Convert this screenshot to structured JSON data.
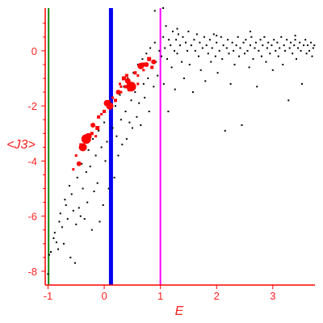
{
  "chart_data": {
    "type": "scatter",
    "title": "",
    "xlabel": "E",
    "ylabel": "<J3>",
    "xlim": [
      -1.05,
      3.75
    ],
    "ylim": [
      -8.5,
      1.55
    ],
    "xticks": [
      "-1",
      "0",
      "1",
      "2",
      "3"
    ],
    "yticks": [
      "-8",
      "-6",
      "-4",
      "-2",
      "0"
    ],
    "colors": {
      "axis": "#ff0000",
      "labels": "#ff2020",
      "black_points": "#000000",
      "red_points": "#ff0000",
      "line_green": "#118811",
      "line_blue": "#0000ee",
      "line_magenta": "#ff00ff"
    },
    "vertical_lines": [
      {
        "x": -0.99,
        "color": "#118811"
      },
      {
        "x": 0.12,
        "color": "#0000ee"
      },
      {
        "x": 1.0,
        "color": "#ff00ff"
      }
    ],
    "series": [
      {
        "color": "#000000",
        "points": [
          [
            -1.0,
            -8.1
          ],
          [
            -0.98,
            -7.4
          ],
          [
            -0.95,
            -7.3
          ],
          [
            -0.9,
            -6.8
          ],
          [
            -0.88,
            -6.6
          ],
          [
            -0.85,
            -6.95
          ],
          [
            -0.82,
            -7.2
          ],
          [
            -0.8,
            -6.2
          ],
          [
            -0.78,
            -5.9
          ],
          [
            -0.75,
            -6.4
          ],
          [
            -0.72,
            -7.0
          ],
          [
            -0.7,
            -5.4
          ],
          [
            -0.68,
            -5.6
          ],
          [
            -0.65,
            -6.1
          ],
          [
            -0.62,
            -4.9
          ],
          [
            -0.6,
            -7.5
          ],
          [
            -0.58,
            -5.2
          ],
          [
            -0.55,
            -5.8
          ],
          [
            -0.52,
            -7.7
          ],
          [
            -0.5,
            -6.3
          ],
          [
            -0.48,
            -4.6
          ],
          [
            -0.45,
            -5.7
          ],
          [
            -0.42,
            -6.0
          ],
          [
            -0.4,
            -4.1
          ],
          [
            -0.38,
            -5.0
          ],
          [
            -0.35,
            -6.1
          ],
          [
            -0.32,
            -4.4
          ],
          [
            -0.3,
            -5.5
          ],
          [
            -0.28,
            -3.6
          ],
          [
            -0.25,
            -4.2
          ],
          [
            -0.22,
            -6.5
          ],
          [
            -0.2,
            -3.2
          ],
          [
            -0.18,
            -5.1
          ],
          [
            -0.15,
            -3.8
          ],
          [
            -0.12,
            -4.8
          ],
          [
            -0.1,
            -2.9
          ],
          [
            -0.08,
            -6.2
          ],
          [
            -0.05,
            -3.5
          ],
          [
            -0.02,
            -5.6
          ],
          [
            0.0,
            -2.6
          ],
          [
            0.02,
            -4.0
          ],
          [
            0.05,
            -3.3
          ],
          [
            0.08,
            -5.0
          ],
          [
            0.15,
            -2.8
          ],
          [
            0.18,
            -4.6
          ],
          [
            0.2,
            -2.0
          ],
          [
            0.22,
            -3.1
          ],
          [
            0.25,
            -3.8
          ],
          [
            0.28,
            -1.6
          ],
          [
            0.3,
            -2.5
          ],
          [
            0.32,
            -3.4
          ],
          [
            0.35,
            -1.3
          ],
          [
            0.38,
            -2.2
          ],
          [
            0.4,
            -3.2
          ],
          [
            0.42,
            -1.0
          ],
          [
            0.45,
            -2.6
          ],
          [
            0.48,
            -1.8
          ],
          [
            0.5,
            -2.8
          ],
          [
            0.52,
            -0.8
          ],
          [
            0.55,
            -1.5
          ],
          [
            0.58,
            -2.4
          ],
          [
            0.6,
            -0.5
          ],
          [
            0.62,
            -1.9
          ],
          [
            0.65,
            -2.7
          ],
          [
            0.68,
            -0.3
          ],
          [
            0.7,
            -1.2
          ],
          [
            0.72,
            -1.7
          ],
          [
            0.75,
            -0.1
          ],
          [
            0.78,
            -1.0
          ],
          [
            0.8,
            -2.2
          ],
          [
            0.82,
            0.1
          ],
          [
            0.85,
            -0.6
          ],
          [
            0.88,
            -1.3
          ],
          [
            0.9,
            0.3
          ],
          [
            0.92,
            -0.4
          ],
          [
            0.95,
            -0.9
          ],
          [
            0.98,
            0.0
          ],
          [
            1.02,
            -0.2
          ],
          [
            1.05,
            0.5
          ],
          [
            1.06,
            -1.2
          ],
          [
            1.08,
            0.1
          ],
          [
            1.1,
            0.9
          ],
          [
            1.12,
            -0.3
          ],
          [
            1.14,
            -2.2
          ],
          [
            1.15,
            0.4
          ],
          [
            1.18,
            0.2
          ],
          [
            1.2,
            -0.6
          ],
          [
            1.22,
            0.7
          ],
          [
            1.25,
            0.0
          ],
          [
            1.26,
            -1.4
          ],
          [
            1.28,
            0.4
          ],
          [
            1.3,
            -0.1
          ],
          [
            1.32,
            0.6
          ],
          [
            1.35,
            0.2
          ],
          [
            1.38,
            -0.4
          ],
          [
            1.4,
            0.5
          ],
          [
            1.42,
            -1.0
          ],
          [
            1.45,
            0.3
          ],
          [
            1.48,
            0.0
          ],
          [
            1.5,
            0.7
          ],
          [
            1.52,
            -0.5
          ],
          [
            1.55,
            0.2
          ],
          [
            1.58,
            -1.5
          ],
          [
            1.6,
            0.4
          ],
          [
            1.62,
            0.0
          ],
          [
            1.65,
            0.6
          ],
          [
            1.68,
            -0.2
          ],
          [
            1.7,
            0.3
          ],
          [
            1.72,
            -0.7
          ],
          [
            1.75,
            0.1
          ],
          [
            1.78,
            0.5
          ],
          [
            1.8,
            -1.1
          ],
          [
            1.82,
            0.2
          ],
          [
            1.85,
            -0.1
          ],
          [
            1.88,
            0.4
          ],
          [
            1.9,
            -0.4
          ],
          [
            1.92,
            0.1
          ],
          [
            1.95,
            0.6
          ],
          [
            1.98,
            -0.2
          ],
          [
            2.0,
            0.3
          ],
          [
            2.02,
            -0.8
          ],
          [
            2.05,
            0.0
          ],
          [
            2.08,
            0.5
          ],
          [
            2.1,
            -0.3
          ],
          [
            2.12,
            0.2
          ],
          [
            2.15,
            -2.9
          ],
          [
            2.18,
            0.1
          ],
          [
            2.2,
            0.4
          ],
          [
            2.22,
            -0.1
          ],
          [
            2.25,
            -1.2
          ],
          [
            2.28,
            0.3
          ],
          [
            2.3,
            0.0
          ],
          [
            2.32,
            -0.5
          ],
          [
            2.35,
            0.2
          ],
          [
            2.38,
            0.5
          ],
          [
            2.4,
            -0.2
          ],
          [
            2.42,
            0.1
          ],
          [
            2.45,
            -2.7
          ],
          [
            2.48,
            0.3
          ],
          [
            2.5,
            -0.1
          ],
          [
            2.52,
            0.4
          ],
          [
            2.55,
            0.0
          ],
          [
            2.58,
            -0.6
          ],
          [
            2.6,
            0.2
          ],
          [
            2.62,
            0.5
          ],
          [
            2.65,
            -0.3
          ],
          [
            2.68,
            0.1
          ],
          [
            2.7,
            0.3
          ],
          [
            2.72,
            -1.3
          ],
          [
            2.75,
            0.0
          ],
          [
            2.78,
            0.4
          ],
          [
            2.8,
            -0.2
          ],
          [
            2.82,
            0.2
          ],
          [
            2.85,
            0.5
          ],
          [
            2.88,
            -0.4
          ],
          [
            2.9,
            0.1
          ],
          [
            2.92,
            0.3
          ],
          [
            2.95,
            -0.1
          ],
          [
            2.98,
            0.2
          ],
          [
            3.0,
            -0.7
          ],
          [
            3.02,
            0.4
          ],
          [
            3.05,
            0.0
          ],
          [
            3.08,
            0.3
          ],
          [
            3.1,
            -0.2
          ],
          [
            3.12,
            0.1
          ],
          [
            3.15,
            0.5
          ],
          [
            3.18,
            -0.5
          ],
          [
            3.2,
            0.2
          ],
          [
            3.22,
            0.0
          ],
          [
            3.25,
            0.4
          ],
          [
            3.28,
            -1.8
          ],
          [
            3.3,
            0.1
          ],
          [
            3.32,
            0.3
          ],
          [
            3.35,
            -0.1
          ],
          [
            3.38,
            0.2
          ],
          [
            3.4,
            0.4
          ],
          [
            3.42,
            -0.3
          ],
          [
            3.45,
            0.1
          ],
          [
            3.48,
            0.3
          ],
          [
            3.5,
            0.0
          ],
          [
            3.52,
            -1.2
          ],
          [
            3.55,
            0.2
          ],
          [
            3.58,
            0.4
          ],
          [
            3.6,
            -0.1
          ],
          [
            3.62,
            0.2
          ],
          [
            3.65,
            0.0
          ],
          [
            3.68,
            0.3
          ],
          [
            3.7,
            -0.2
          ],
          [
            3.72,
            0.1
          ],
          [
            3.74,
            0.2
          ],
          [
            0.9,
            1.45
          ],
          [
            1.05,
            1.55
          ],
          [
            1.3,
            0.8
          ],
          [
            2.0,
            0.55
          ],
          [
            2.6,
            0.7
          ],
          [
            3.4,
            0.55
          ]
        ]
      },
      {
        "color": "#ff0000",
        "points": [
          [
            -0.55,
            -4.3
          ],
          [
            -0.5,
            -3.8
          ],
          [
            -0.45,
            -4.1
          ],
          [
            -0.42,
            -3.4
          ],
          [
            -0.38,
            -3.5
          ],
          [
            -0.32,
            -3.2
          ],
          [
            -0.28,
            -3.1
          ],
          [
            -0.22,
            -3.0
          ],
          [
            -0.2,
            -2.7
          ],
          [
            -0.15,
            -3.1
          ],
          [
            -0.12,
            -2.8
          ],
          [
            -0.1,
            -2.4
          ],
          [
            -0.05,
            -2.3
          ],
          [
            0.0,
            -2.2
          ],
          [
            0.05,
            -1.9
          ],
          [
            0.08,
            -1.85
          ],
          [
            0.1,
            -2.0
          ],
          [
            0.15,
            -1.7
          ],
          [
            0.2,
            -1.8
          ],
          [
            0.25,
            -1.5
          ],
          [
            0.28,
            -1.2
          ],
          [
            0.3,
            -1.5
          ],
          [
            0.35,
            -1.0
          ],
          [
            0.38,
            -1.3
          ],
          [
            0.42,
            -1.1
          ],
          [
            0.45,
            -1.4
          ],
          [
            0.48,
            -1.3
          ],
          [
            0.5,
            -1.2
          ],
          [
            0.55,
            -0.8
          ],
          [
            0.6,
            -0.9
          ],
          [
            0.65,
            -0.55
          ],
          [
            0.7,
            -0.5
          ],
          [
            0.75,
            -0.5
          ],
          [
            0.8,
            -0.3
          ],
          [
            0.85,
            -0.6
          ],
          [
            0.88,
            -0.4
          ],
          [
            0.6,
            -1.2
          ],
          [
            0.4,
            -0.9
          ],
          [
            0.7,
            -0.7
          ],
          [
            0.3,
            -1.3
          ]
        ],
        "sizes": [
          3,
          3,
          6,
          3,
          10,
          12,
          8,
          4,
          6,
          3,
          5,
          4,
          3,
          4,
          8,
          4,
          9,
          3,
          4,
          6,
          3,
          3,
          5,
          4,
          7,
          5,
          12,
          4,
          4,
          3,
          8,
          5,
          6,
          5,
          4,
          6,
          3,
          4,
          3,
          3
        ]
      }
    ]
  }
}
